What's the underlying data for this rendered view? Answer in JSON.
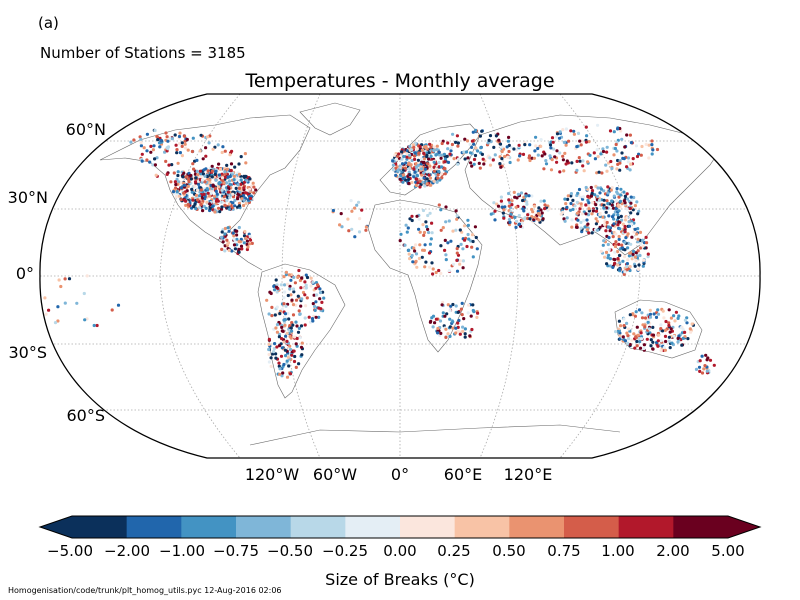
{
  "panel_label": "(a)",
  "stations_text": "Number of Stations = 3185",
  "title": "Temperatures - Monthly average",
  "lat_labels": [
    "60°N",
    "30°N",
    "0°",
    "30°S",
    "60°S"
  ],
  "lon_labels": [
    "120°W",
    "60°W",
    "0°",
    "60°E",
    "120°E"
  ],
  "colorbar": {
    "label": "Size of Breaks ($^\\circ$C)",
    "label_display": "Size of Breaks (°C)",
    "ticks": [
      "−5.00",
      "−2.00",
      "−1.00",
      "−0.75",
      "−0.50",
      "−0.25",
      "0.00",
      "0.25",
      "0.50",
      "0.75",
      "1.00",
      "2.00",
      "5.00"
    ],
    "colors": [
      "#0b305b",
      "#2166ac",
      "#4393c3",
      "#7fb6d8",
      "#b8d8e8",
      "#e4eef5",
      "#fbe6dd",
      "#f8c3a6",
      "#ea9370",
      "#d45d4a",
      "#b2182b",
      "#6a001f"
    ],
    "extend_low_color": "#0b305b",
    "extend_high_color": "#6a001f"
  },
  "footer": "Homogenisation/code/trunk/plt_homog_utils.pyc   12-Aug-2016 02:06"
}
